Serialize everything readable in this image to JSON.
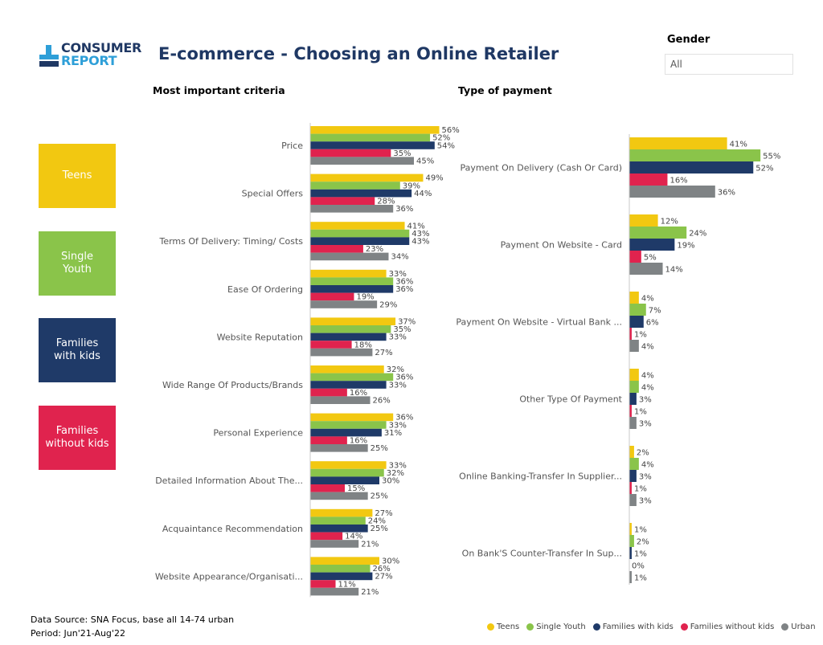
{
  "header": {
    "logo_line1": "CONSUMER",
    "logo_line2": "REPORT",
    "title": "E-commerce - Choosing an Online Retailer"
  },
  "slicer": {
    "label": "Gender",
    "value": "All"
  },
  "segments": [
    {
      "label_line1": "Teens",
      "label_line2": "",
      "color": "#f2c811"
    },
    {
      "label_line1": "Single",
      "label_line2": "Youth",
      "color": "#8ac44a"
    },
    {
      "label_line1": "Families",
      "label_line2": "with kids",
      "color": "#1f3a68"
    },
    {
      "label_line1": "Families",
      "label_line2": "without kids",
      "color": "#e0234e"
    }
  ],
  "colors": {
    "Teens": "#f2c811",
    "Single Youth": "#8ac44a",
    "Families with kids": "#1f3a68",
    "Families without kids": "#e0234e",
    "Urban": "#7f8385"
  },
  "chart_data": [
    {
      "type": "bar",
      "orientation": "horizontal",
      "title": "Most important criteria",
      "categories": [
        "Price",
        "Special Offers",
        "Terms Of Delivery: Timing/ Costs",
        "Ease Of Ordering",
        "Website Reputation",
        "Wide Range Of Products/Brands",
        "Personal Experience",
        "Detailed Information About The...",
        "Acquaintance Recommendation",
        "Website Appearance/Organisati..."
      ],
      "series": [
        {
          "name": "Teens",
          "values": [
            56,
            49,
            41,
            33,
            37,
            32,
            36,
            33,
            27,
            30
          ]
        },
        {
          "name": "Single Youth",
          "values": [
            52,
            39,
            43,
            36,
            35,
            36,
            33,
            32,
            24,
            26
          ]
        },
        {
          "name": "Families with kids",
          "values": [
            54,
            44,
            43,
            36,
            33,
            33,
            31,
            30,
            25,
            27
          ]
        },
        {
          "name": "Families without kids",
          "values": [
            35,
            28,
            23,
            19,
            18,
            16,
            16,
            15,
            14,
            11
          ]
        },
        {
          "name": "Urban",
          "values": [
            45,
            36,
            34,
            29,
            27,
            26,
            25,
            25,
            21,
            21
          ]
        }
      ],
      "value_format": "%"
    },
    {
      "type": "bar",
      "orientation": "horizontal",
      "title": "Type of payment",
      "categories": [
        "Payment On Delivery (Cash Or Card)",
        "Payment On Website - Card",
        "Payment On Website - Virtual Bank ...",
        "Other Type Of Payment",
        "Online Banking-Transfer In Supplier...",
        "On Bank'S Counter-Transfer In Sup..."
      ],
      "series": [
        {
          "name": "Teens",
          "values": [
            41,
            12,
            4,
            4,
            2,
            1
          ]
        },
        {
          "name": "Single Youth",
          "values": [
            55,
            24,
            7,
            4,
            4,
            2
          ]
        },
        {
          "name": "Families with kids",
          "values": [
            52,
            19,
            6,
            3,
            3,
            1
          ]
        },
        {
          "name": "Families without kids",
          "values": [
            16,
            5,
            1,
            1,
            1,
            0
          ]
        },
        {
          "name": "Urban",
          "values": [
            36,
            14,
            4,
            3,
            3,
            1
          ]
        }
      ],
      "value_format": "%"
    }
  ],
  "legend": [
    "Teens",
    "Single Youth",
    "Families with kids",
    "Families without kids",
    "Urban"
  ],
  "footer": {
    "source": "Data Source: SNA Focus, base all 14-74 urban",
    "period": "Period: Jun'21-Aug'22"
  }
}
